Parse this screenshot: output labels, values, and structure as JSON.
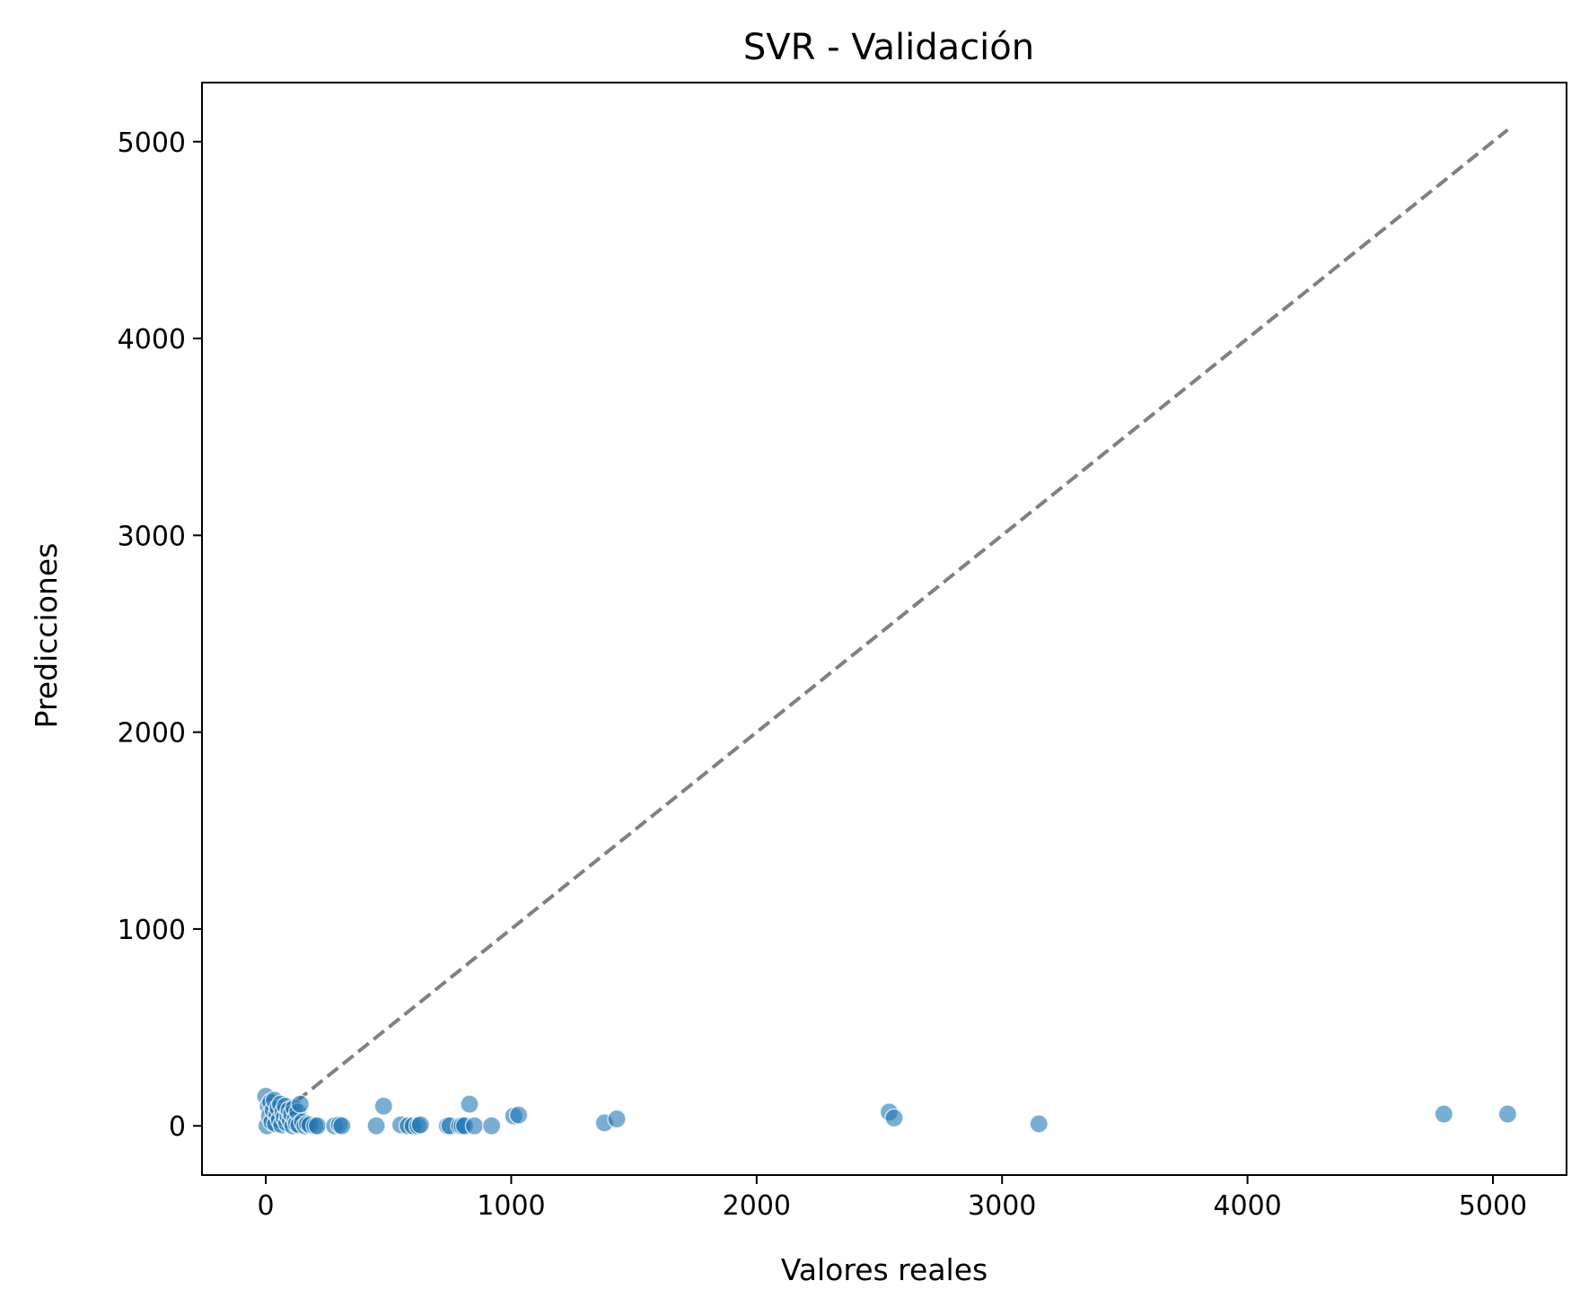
{
  "chart_data": {
    "type": "scatter",
    "title": "SVR - Validación",
    "xlabel": "Valores reales",
    "ylabel": "Predicciones",
    "xlim": [
      -260,
      5300
    ],
    "ylim": [
      -250,
      5300
    ],
    "xticks": [
      0,
      1000,
      2000,
      3000,
      4000,
      5000
    ],
    "yticks": [
      0,
      1000,
      2000,
      3000,
      4000,
      5000
    ],
    "grid": false,
    "legend": null,
    "reference_line": {
      "style": "dashed",
      "color": "#808080",
      "from": [
        0,
        0
      ],
      "to": [
        5060,
        5060
      ]
    },
    "point_color": "#1f77b4",
    "points": [
      [
        0,
        150
      ],
      [
        5,
        0
      ],
      [
        10,
        100
      ],
      [
        15,
        50
      ],
      [
        20,
        120
      ],
      [
        25,
        20
      ],
      [
        30,
        80
      ],
      [
        35,
        130
      ],
      [
        40,
        10
      ],
      [
        45,
        60
      ],
      [
        50,
        90
      ],
      [
        55,
        30
      ],
      [
        60,
        110
      ],
      [
        65,
        5
      ],
      [
        70,
        70
      ],
      [
        75,
        40
      ],
      [
        80,
        100
      ],
      [
        85,
        15
      ],
      [
        90,
        50
      ],
      [
        95,
        80
      ],
      [
        100,
        25
      ],
      [
        105,
        60
      ],
      [
        110,
        0
      ],
      [
        115,
        90
      ],
      [
        120,
        35
      ],
      [
        125,
        10
      ],
      [
        130,
        70
      ],
      [
        135,
        5
      ],
      [
        140,
        110
      ],
      [
        150,
        20
      ],
      [
        160,
        0
      ],
      [
        170,
        10
      ],
      [
        180,
        5
      ],
      [
        200,
        0
      ],
      [
        210,
        0
      ],
      [
        280,
        0
      ],
      [
        300,
        5
      ],
      [
        310,
        0
      ],
      [
        450,
        0
      ],
      [
        480,
        100
      ],
      [
        550,
        5
      ],
      [
        580,
        0
      ],
      [
        600,
        0
      ],
      [
        620,
        0
      ],
      [
        630,
        5
      ],
      [
        740,
        0
      ],
      [
        750,
        0
      ],
      [
        790,
        0
      ],
      [
        800,
        0
      ],
      [
        810,
        0
      ],
      [
        830,
        110
      ],
      [
        850,
        0
      ],
      [
        920,
        0
      ],
      [
        1010,
        50
      ],
      [
        1030,
        55
      ],
      [
        1380,
        15
      ],
      [
        1430,
        35
      ],
      [
        2540,
        70
      ],
      [
        2560,
        40
      ],
      [
        3150,
        10
      ],
      [
        4800,
        60
      ],
      [
        5060,
        60
      ]
    ]
  }
}
